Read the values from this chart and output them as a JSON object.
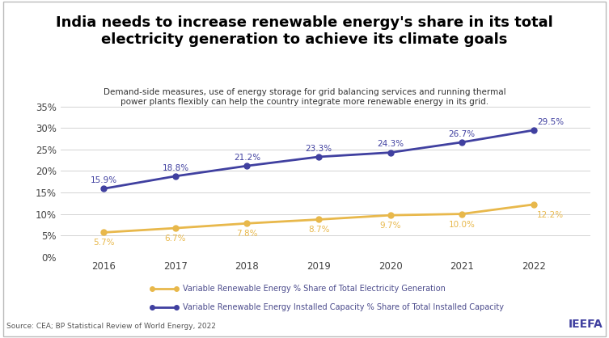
{
  "title": "India needs to increase renewable energy's share in its total\nelectricity generation to achieve its climate goals",
  "subtitle": "Demand-side measures, use of energy storage for grid balancing services and running thermal\npower plants flexibly can help the country integrate more renewable energy in its grid.",
  "years": [
    2016,
    2017,
    2018,
    2019,
    2020,
    2021,
    2022
  ],
  "generation_values": [
    5.7,
    6.7,
    7.8,
    8.7,
    9.7,
    10.0,
    12.2
  ],
  "capacity_values": [
    15.9,
    18.8,
    21.2,
    23.3,
    24.3,
    26.7,
    29.5
  ],
  "generation_color": "#E8B84B",
  "capacity_color": "#4040A0",
  "generation_label": "Variable Renewable Energy % Share of Total Electricity Generation",
  "capacity_label": "Variable Renewable Energy Installed Capacity % Share of Total Installed Capacity",
  "source_text": "Source: CEA; BP Statistical Review of World Energy, 2022",
  "brand_text": "IEEFA",
  "ylim": [
    0,
    37
  ],
  "yticks": [
    0,
    5,
    10,
    15,
    20,
    25,
    30,
    35
  ],
  "background_color": "#FFFFFF",
  "grid_color": "#CCCCCC",
  "label_color_gen": "#E8B84B",
  "label_color_cap": "#4040A0",
  "text_color": "#4B4B8C"
}
